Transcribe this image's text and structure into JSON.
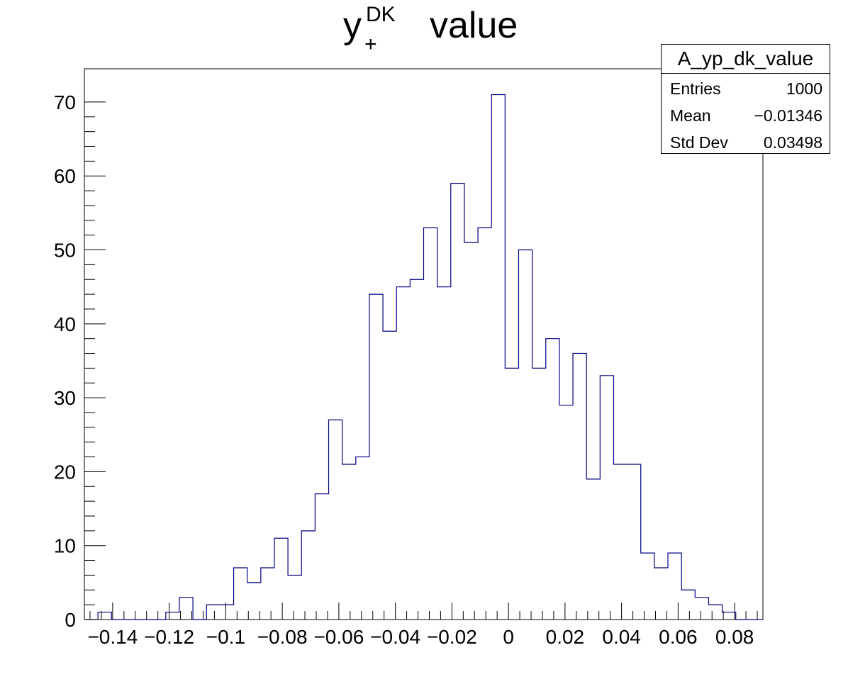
{
  "title": {
    "base": "y",
    "superscript": "DK",
    "subscript": "+",
    "suffix": "value"
  },
  "stats": {
    "name": "A_yp_dk_value",
    "rows": [
      {
        "key": "Entries",
        "value": "1000"
      },
      {
        "key": "Mean",
        "value": "−0.01346"
      },
      {
        "key": "Std Dev",
        "value": "0.03498"
      }
    ]
  },
  "chart_data": {
    "type": "bar",
    "title": "y+DK value",
    "xlabel": "",
    "ylabel": "",
    "xlim": [
      -0.15,
      0.09
    ],
    "ylim": [
      0,
      74.5
    ],
    "x_tick_labels": [
      "−0.14",
      "−0.12",
      "−0.1",
      "−0.08",
      "−0.06",
      "−0.04",
      "−0.02",
      "0",
      "0.02",
      "0.04",
      "0.06",
      "0.08"
    ],
    "x_ticks": [
      -0.14,
      -0.12,
      -0.1,
      -0.08,
      -0.06,
      -0.04,
      -0.02,
      0,
      0.02,
      0.04,
      0.06,
      0.08
    ],
    "y_tick_labels": [
      "0",
      "10",
      "20",
      "30",
      "40",
      "50",
      "60",
      "70"
    ],
    "y_ticks": [
      0,
      10,
      20,
      30,
      40,
      50,
      60,
      70
    ],
    "bin_edges_start": -0.15,
    "bin_width": 0.0048,
    "values": [
      0,
      1,
      0,
      0,
      0,
      0,
      1,
      3,
      0,
      2,
      2,
      7,
      5,
      7,
      11,
      6,
      12,
      17,
      27,
      21,
      22,
      44,
      39,
      45,
      46,
      53,
      45,
      59,
      51,
      53,
      71,
      34,
      50,
      34,
      38,
      29,
      36,
      19,
      33,
      21,
      21,
      9,
      7,
      9,
      4,
      3,
      2,
      1,
      0,
      0
    ],
    "line_color": "#000080",
    "grid": false,
    "legend": "top-right"
  }
}
